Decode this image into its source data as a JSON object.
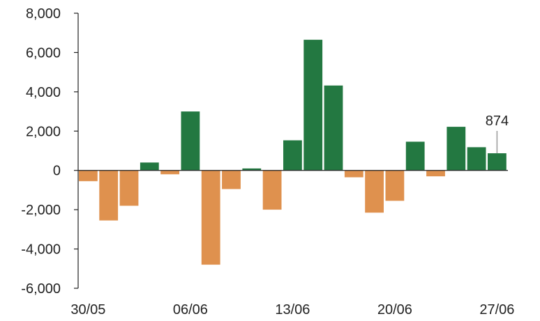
{
  "chart_data": {
    "type": "bar",
    "title": "",
    "xlabel": "",
    "ylabel": "",
    "ylim": [
      -6000,
      8000
    ],
    "yticks": [
      8000,
      6000,
      4000,
      2000,
      0,
      -2000,
      -4000,
      -6000
    ],
    "ytick_labels": [
      "8,000",
      "6,000",
      "4,000",
      "2,000",
      "0",
      "-2,000",
      "-4,000",
      "-6,000"
    ],
    "x_tick_labels": [
      "30/05",
      "06/06",
      "13/06",
      "20/06",
      "27/06"
    ],
    "x_tick_bar_index": [
      0,
      5,
      10,
      15,
      20
    ],
    "grid": false,
    "colors": {
      "positive": "#237841",
      "negative": "#df914e",
      "axis": "#222222"
    },
    "values": [
      -550,
      -2550,
      -1800,
      400,
      -200,
      3000,
      -4800,
      -950,
      100,
      -2000,
      1530,
      6650,
      4320,
      -350,
      -2150,
      -1550,
      1460,
      -300,
      2220,
      1180,
      874
    ],
    "annotation": {
      "bar_index": 20,
      "text": "874"
    }
  }
}
